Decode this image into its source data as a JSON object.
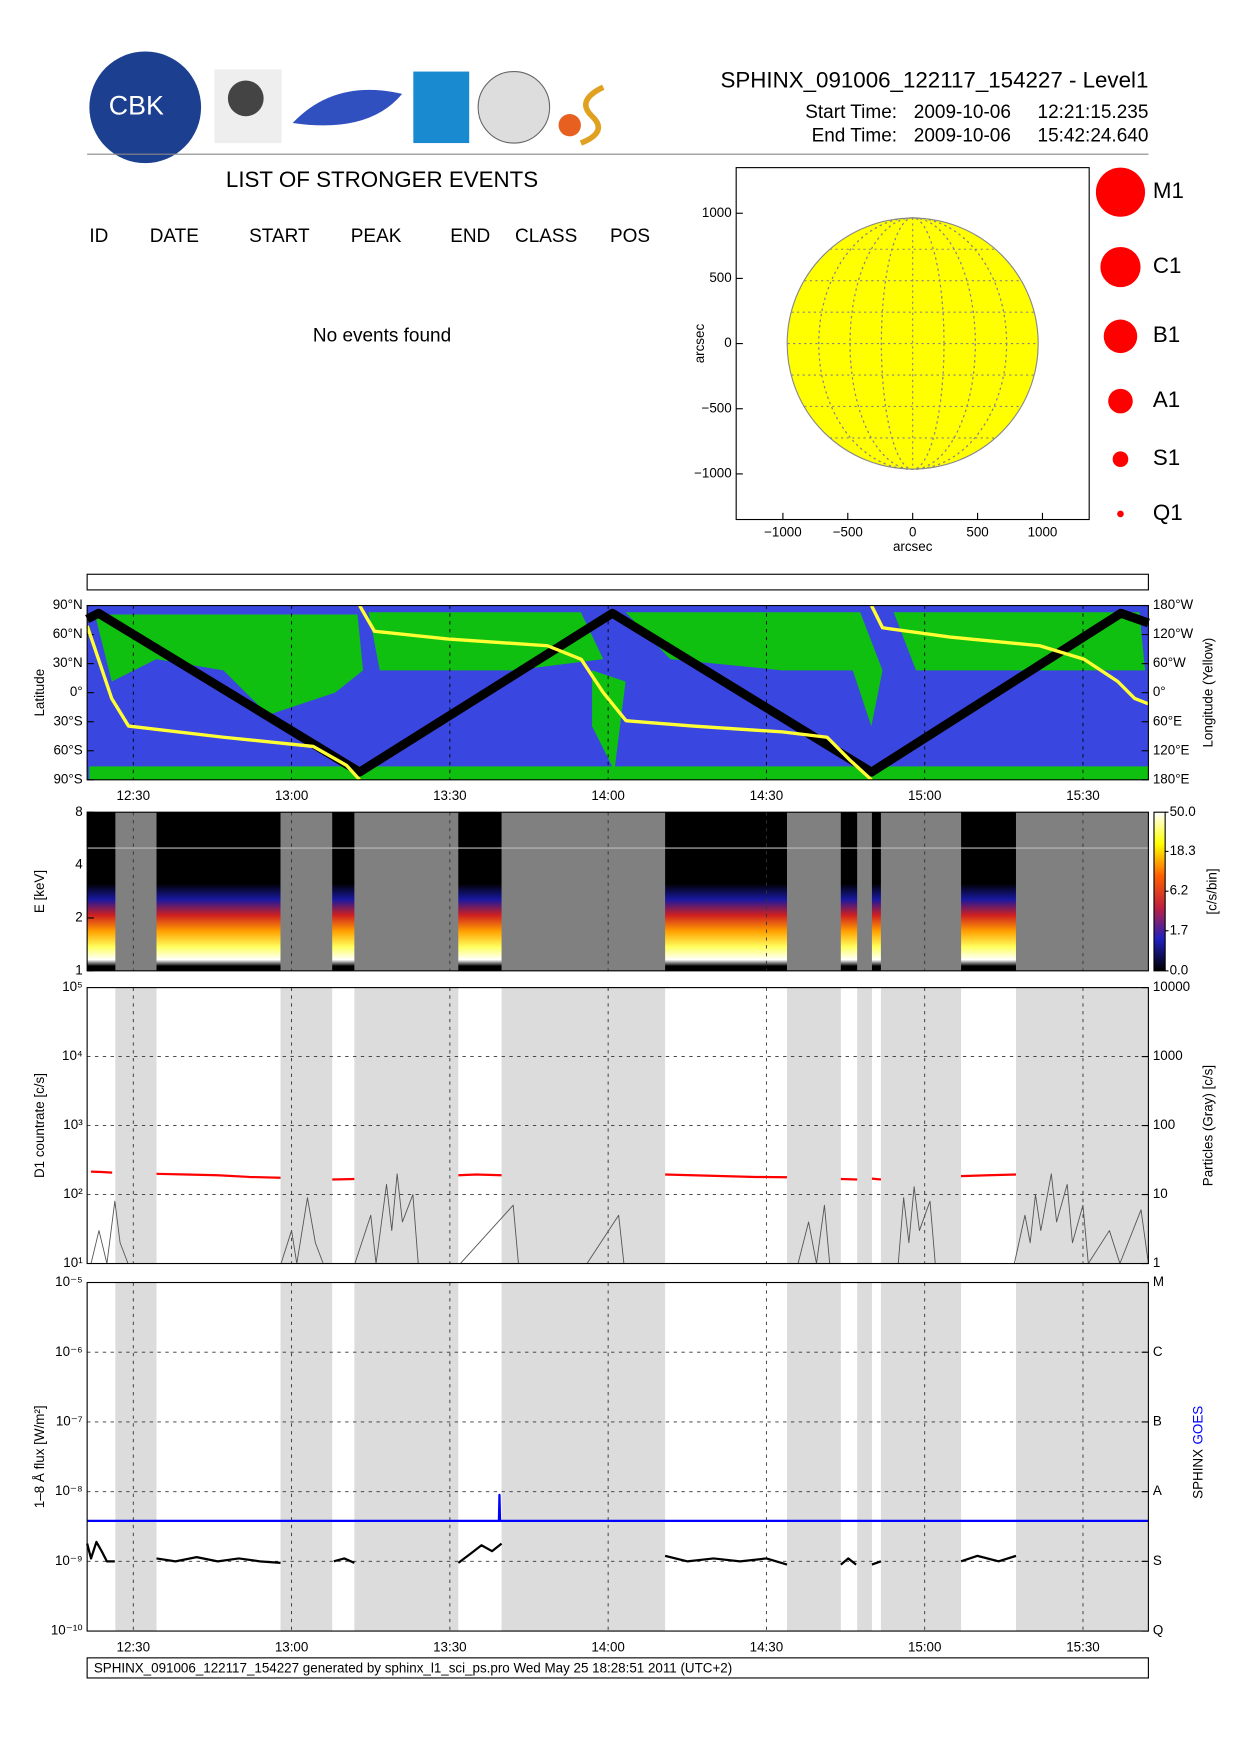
{
  "header": {
    "logo_text": "CBK",
    "title": "SPHINX_091006_122117_154227 - Level1",
    "start_label": "Start Time:",
    "start_date": "2009-10-06",
    "start_time": "12:21:15.235",
    "end_label": "End Time:",
    "end_date": "2009-10-06",
    "end_time": "15:42:24.640"
  },
  "events": {
    "title": "LIST OF STRONGER EVENTS",
    "columns": [
      "ID",
      "DATE",
      "START",
      "PEAK",
      "END",
      "CLASS",
      "POS"
    ],
    "message": "No events found"
  },
  "disk": {
    "xlim": [
      -1360,
      1360
    ],
    "ylim": [
      -1350,
      1350
    ],
    "xticks": [
      {
        "value": -1000,
        "label": "−1000"
      },
      {
        "value": -500,
        "label": "−500"
      },
      0,
      500,
      1000
    ],
    "yticks": [
      {
        "value": -1000,
        "label": "−1000"
      },
      {
        "value": -500,
        "label": "−500"
      },
      0,
      500,
      1000
    ],
    "x_label": "arcsec",
    "y_label": "arcsec",
    "disk_radius": 965,
    "color": "#ffff00"
  },
  "class_legend": {
    "labels": [
      "M1",
      "C1",
      "B1",
      "A1",
      "S1",
      "Q1"
    ],
    "color": "#ff0000"
  },
  "time_axis": {
    "xlim": [
      741.25,
      942.4
    ],
    "xticks": [
      {
        "value": 750,
        "label": "12:30"
      },
      {
        "value": 780,
        "label": "13:00"
      },
      {
        "value": 810,
        "label": "13:30"
      },
      {
        "value": 840,
        "label": "14:00"
      },
      {
        "value": 870,
        "label": "14:30"
      },
      {
        "value": 900,
        "label": "15:00"
      },
      {
        "value": 930,
        "label": "15:30"
      }
    ]
  },
  "gray_intervals": [
    [
      746.6,
      754.4
    ],
    [
      777.9,
      787.7
    ],
    [
      791.9,
      811.6
    ],
    [
      819.8,
      850.8
    ],
    [
      873.9,
      884.1
    ],
    [
      887.2,
      890.0
    ],
    [
      891.7,
      906.9
    ],
    [
      917.3,
      942.4
    ]
  ],
  "panels": [
    {
      "type": "map",
      "ylabel": "Latitude",
      "y2label": "Longitude (Yellow)",
      "ylim": [
        -90,
        90
      ],
      "yticks": [
        {
          "value": 90,
          "label": "90°N"
        },
        {
          "value": 60,
          "label": "60°N"
        },
        {
          "value": 30,
          "label": "30°N"
        },
        {
          "value": 0,
          "label": "0°"
        },
        {
          "value": -30,
          "label": "30°S"
        },
        {
          "value": -60,
          "label": "60°S"
        },
        {
          "value": -90,
          "label": "90°S"
        }
      ],
      "y2lim": [
        -180,
        180
      ],
      "y2ticks": [
        {
          "value": 180,
          "label": "180°W"
        },
        {
          "value": 120,
          "label": "120°W"
        },
        {
          "value": 60,
          "label": "60°W"
        },
        {
          "value": 0,
          "label": "0°"
        },
        {
          "value": -60,
          "label": "60°E"
        },
        {
          "value": -120,
          "label": "120°E"
        },
        {
          "value": -180,
          "label": "180°E"
        }
      ],
      "series": [
        {
          "color": "#000000",
          "x": [
            741.25,
            743.4,
            792.9,
            840.8,
            889.9,
            937.2,
            942.4
          ],
          "values": [
            76,
            82,
            -82,
            82,
            -82,
            82,
            72
          ]
        },
        {
          "color": "#ffff33",
          "axis": "y2",
          "x": [
            741.25,
            742.7,
            745.9,
            749.1,
            767.1,
            784.1,
            790.4,
            792.9,
            null,
            792.9,
            795.7,
            809.5,
            828.5,
            834.9,
            839.1,
            843.4,
            856.1,
            873.0,
            881.5,
            885.7,
            889.9,
            null,
            889.9,
            892.0,
            904.8,
            921.8,
            930.2,
            936.6,
            939.8,
            942.4
          ],
          "values": [
            138,
            92,
            -12,
            -69,
            -92,
            -111,
            -150,
            -180,
            null,
            180,
            127,
            111,
            97,
            69,
            0,
            -58,
            -69,
            -81,
            -92,
            -138,
            -180,
            null,
            180,
            134,
            115,
            97,
            69,
            23,
            -12,
            -23
          ]
        }
      ]
    },
    {
      "type": "spectrogram",
      "ylabel": "E [keV]",
      "log": true,
      "ylim": [
        1,
        8
      ],
      "yticks": [
        1,
        2,
        4,
        8
      ],
      "colorbar": {
        "label": "[c/s/bin]",
        "scale": "log1p",
        "lim": [
          0,
          50
        ],
        "ticks": [
          {
            "value": 0,
            "label": "0.0"
          },
          1.7,
          6.2,
          18.3,
          {
            "value": 50,
            "label": "50.0"
          }
        ]
      }
    },
    {
      "type": "line",
      "log": true,
      "ylabel": "D1 countrate [c/s]",
      "y2label": "Particles (Gray) [c/s]",
      "ylim": [
        10,
        100000
      ],
      "yticks": [
        {
          "value": 10,
          "label": "10¹"
        },
        {
          "value": 100,
          "label": "10²"
        },
        {
          "value": 1000,
          "label": "10³"
        },
        {
          "value": 10000,
          "label": "10⁴"
        },
        {
          "value": 100000,
          "label": "10⁵"
        }
      ],
      "y2lim": [
        1,
        10000
      ],
      "y2ticks": [
        1,
        10,
        100,
        1000,
        10000
      ],
      "series": [
        {
          "color": "#ff0000",
          "x": [
            742,
            744,
            746,
            null,
            754.4,
            760,
            766,
            772,
            777.9,
            null,
            787.7,
            791.9,
            null,
            811.6,
            815,
            819.8,
            null,
            850.8,
            856,
            862,
            868,
            873.9,
            null,
            884.1,
            887.2,
            null,
            890,
            891.7,
            null,
            906.9,
            912,
            917.3
          ],
          "values": [
            215,
            212,
            208,
            null,
            200,
            195,
            190,
            180,
            175,
            null,
            165,
            168,
            null,
            190,
            195,
            190,
            null,
            195,
            190,
            185,
            180,
            178,
            null,
            168,
            165,
            null,
            170,
            165,
            null,
            185,
            190,
            195
          ]
        },
        {
          "color": "#555555",
          "axis": "y2",
          "x": [
            742,
            743.5,
            745,
            746.5,
            747.5,
            749,
            778,
            780,
            781,
            783,
            784.5,
            786,
            792,
            795,
            796,
            798,
            799,
            800,
            801,
            803,
            804,
            812,
            822,
            823,
            836,
            842,
            843,
            850,
            876,
            878,
            879.5,
            881,
            882,
            895,
            896,
            897,
            898,
            899,
            901,
            902,
            917,
            919,
            920,
            921,
            922,
            924,
            925,
            927,
            928,
            930,
            931,
            935,
            937,
            941,
            942.4
          ],
          "values": [
            1,
            3,
            1,
            8,
            2,
            1,
            1,
            3,
            1,
            9,
            2,
            1,
            1,
            5,
            1,
            14,
            3,
            20,
            4,
            10,
            1,
            1,
            7,
            1,
            1,
            5,
            1,
            1,
            1,
            4,
            1,
            7,
            1,
            1,
            9,
            2,
            13,
            3,
            8,
            1,
            1,
            5,
            2,
            10,
            3,
            20,
            4,
            14,
            2,
            7,
            1,
            3,
            1,
            6,
            1
          ]
        }
      ]
    },
    {
      "type": "line",
      "log": true,
      "ylabel": "1–8 Å flux [W/m²]",
      "ylim": [
        1e-10,
        1e-05
      ],
      "yticks": [
        {
          "value": 1e-10,
          "label": "10⁻¹⁰"
        },
        {
          "value": 1e-09,
          "label": "10⁻⁹"
        },
        {
          "value": 1e-08,
          "label": "10⁻⁸"
        },
        {
          "value": 1e-07,
          "label": "10⁻⁷"
        },
        {
          "value": 1e-06,
          "label": "10⁻⁶"
        },
        {
          "value": 1e-05,
          "label": "10⁻⁵"
        }
      ],
      "y2lim": [
        1e-10,
        1e-05
      ],
      "y2ticks": [
        {
          "value": 1e-10,
          "label": "Q"
        },
        {
          "value": 1e-09,
          "label": "S"
        },
        {
          "value": 1e-08,
          "label": "A"
        },
        {
          "value": 1e-07,
          "label": "B"
        },
        {
          "value": 1e-06,
          "label": "C"
        },
        {
          "value": 1e-05,
          "label": "M"
        }
      ],
      "series": [
        {
          "name": "SPHINX",
          "color": "#000000",
          "x": [
            741.25,
            742,
            743,
            744,
            745,
            746.5,
            null,
            754.4,
            758,
            762,
            766,
            770,
            774,
            777.9,
            null,
            788,
            790,
            791.9,
            null,
            811.6,
            814,
            816,
            818,
            819.8,
            null,
            850.8,
            855,
            860,
            865,
            870,
            873.9,
            null,
            884.1,
            885.5,
            887,
            null,
            890,
            891.7,
            null,
            906.9,
            910,
            914,
            917.3
          ],
          "values": [
            1.8e-09,
            1.1e-09,
            1.9e-09,
            1.4e-09,
            1e-09,
            1e-09,
            null,
            1.1e-09,
            1e-09,
            1.15e-09,
            1e-09,
            1.1e-09,
            1e-09,
            9.5e-10,
            null,
            1e-09,
            1.1e-09,
            9.5e-10,
            null,
            9.5e-10,
            1.3e-09,
            1.7e-09,
            1.4e-09,
            1.8e-09,
            null,
            1.2e-09,
            1e-09,
            1.1e-09,
            1e-09,
            1.1e-09,
            9e-10,
            null,
            9e-10,
            1.1e-09,
            9e-10,
            null,
            9e-10,
            1e-09,
            null,
            1e-09,
            1.2e-09,
            1e-09,
            1.2e-09
          ]
        },
        {
          "name": "GOES",
          "color": "#0000ff",
          "x": [
            741.25,
            819.3,
            819.4,
            819.5,
            942.4
          ],
          "values": [
            3.8e-09,
            3.8e-09,
            9e-09,
            3.8e-09,
            3.8e-09
          ]
        }
      ]
    }
  ],
  "footer": "SPHINX_091006_122117_154227 generated by sphinx_l1_sci_ps.pro Wed May 25 18:28:51 2011 (UTC+2)"
}
